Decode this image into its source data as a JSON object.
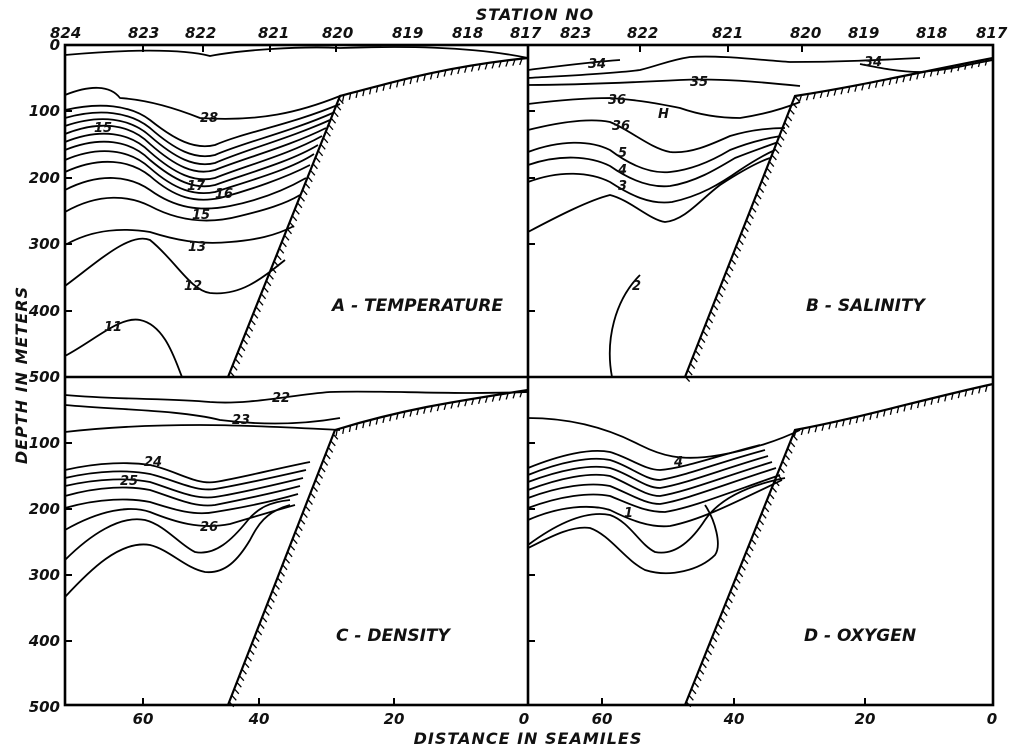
{
  "chart_data": [
    {
      "type": "contour",
      "title": "A - TEMPERATURE",
      "contour_labels": [
        "28",
        "15",
        "17",
        "16",
        "15",
        "13",
        "12",
        "11"
      ],
      "levels": [
        28,
        17,
        16,
        15,
        13,
        12,
        11
      ]
    },
    {
      "type": "contour",
      "title": "B - SALINITY",
      "contour_labels": [
        "34",
        "34",
        "35",
        "36",
        "H",
        "36",
        "5",
        "4",
        "3",
        "2"
      ],
      "levels": [
        34,
        35,
        36,
        35.5,
        35.4,
        35.3,
        35.2
      ]
    },
    {
      "type": "contour",
      "title": "C - DENSITY",
      "contour_labels": [
        "22",
        "23",
        "24",
        "25",
        "26"
      ],
      "levels": [
        22,
        23,
        24,
        25,
        26
      ]
    },
    {
      "type": "contour",
      "title": "D - OXYGEN",
      "contour_labels": [
        "4",
        "1"
      ],
      "levels": [
        4,
        1
      ]
    }
  ],
  "axes": {
    "top_title": "STATION NO",
    "top_stations_left": [
      "824",
      "823",
      "822",
      "821",
      "820",
      "819",
      "818",
      "817"
    ],
    "top_stations_right": [
      "823",
      "822",
      "821",
      "820",
      "819",
      "818",
      "817"
    ],
    "x_label": "DISTANCE IN SEAMILES",
    "x_ticks_left": [
      "60",
      "40",
      "20",
      "0"
    ],
    "x_ticks_right": [
      "60",
      "40",
      "20",
      "0"
    ],
    "x_range": [
      72,
      0
    ],
    "y_label": "DEPTH IN METERS",
    "y_ticks_top": [
      "0",
      "100",
      "200",
      "300",
      "400",
      "500"
    ],
    "y_ticks_bottom": [
      "100",
      "200",
      "300",
      "400",
      "500"
    ],
    "y_range": [
      0,
      500
    ]
  }
}
